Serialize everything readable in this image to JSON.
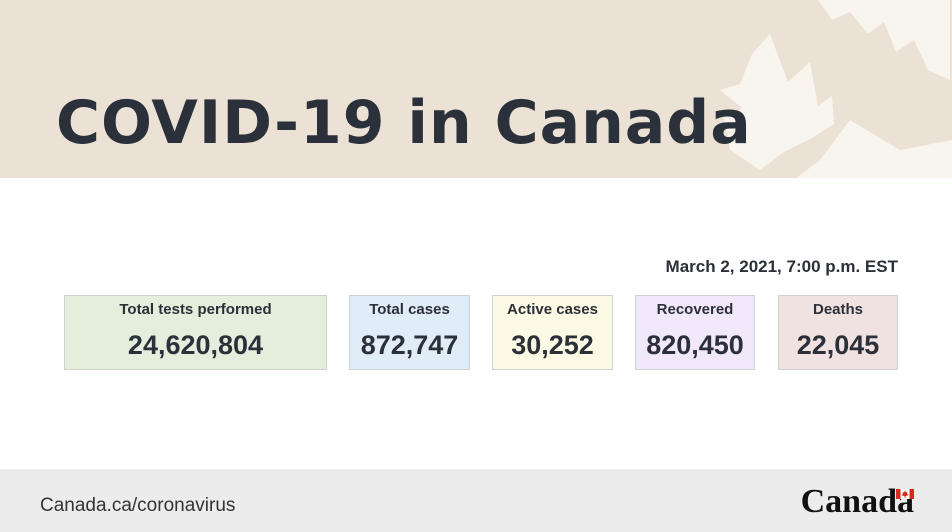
{
  "banner": {
    "title": "COVID-19 in Canada"
  },
  "timestamp": "March 2, 2021, 7:00 p.m. EST",
  "stats": [
    {
      "label": "Total tests performed",
      "value": "24,620,804",
      "color": "#e2efdc"
    },
    {
      "label": "Total cases",
      "value": "872,747",
      "color": "#e0ecf7"
    },
    {
      "label": "Active cases",
      "value": "30,252",
      "color": "#fcf9e4"
    },
    {
      "label": "Recovered",
      "value": "820,450",
      "color": "#f1e8fb"
    },
    {
      "label": "Deaths",
      "value": "22,045",
      "color": "#f1e2e2"
    }
  ],
  "footer": {
    "link": "Canada.ca/coronavirus",
    "wordmark": "Canada",
    "flag_color": "#d52b1e"
  },
  "icons": {
    "banner_decoration": "maple-leaf-icon",
    "wordmark_flag": "canada-flag-icon"
  },
  "colors": {
    "banner_bg": "#ebe1d4",
    "footer_bg": "#ececec",
    "text": "#2c3038"
  }
}
